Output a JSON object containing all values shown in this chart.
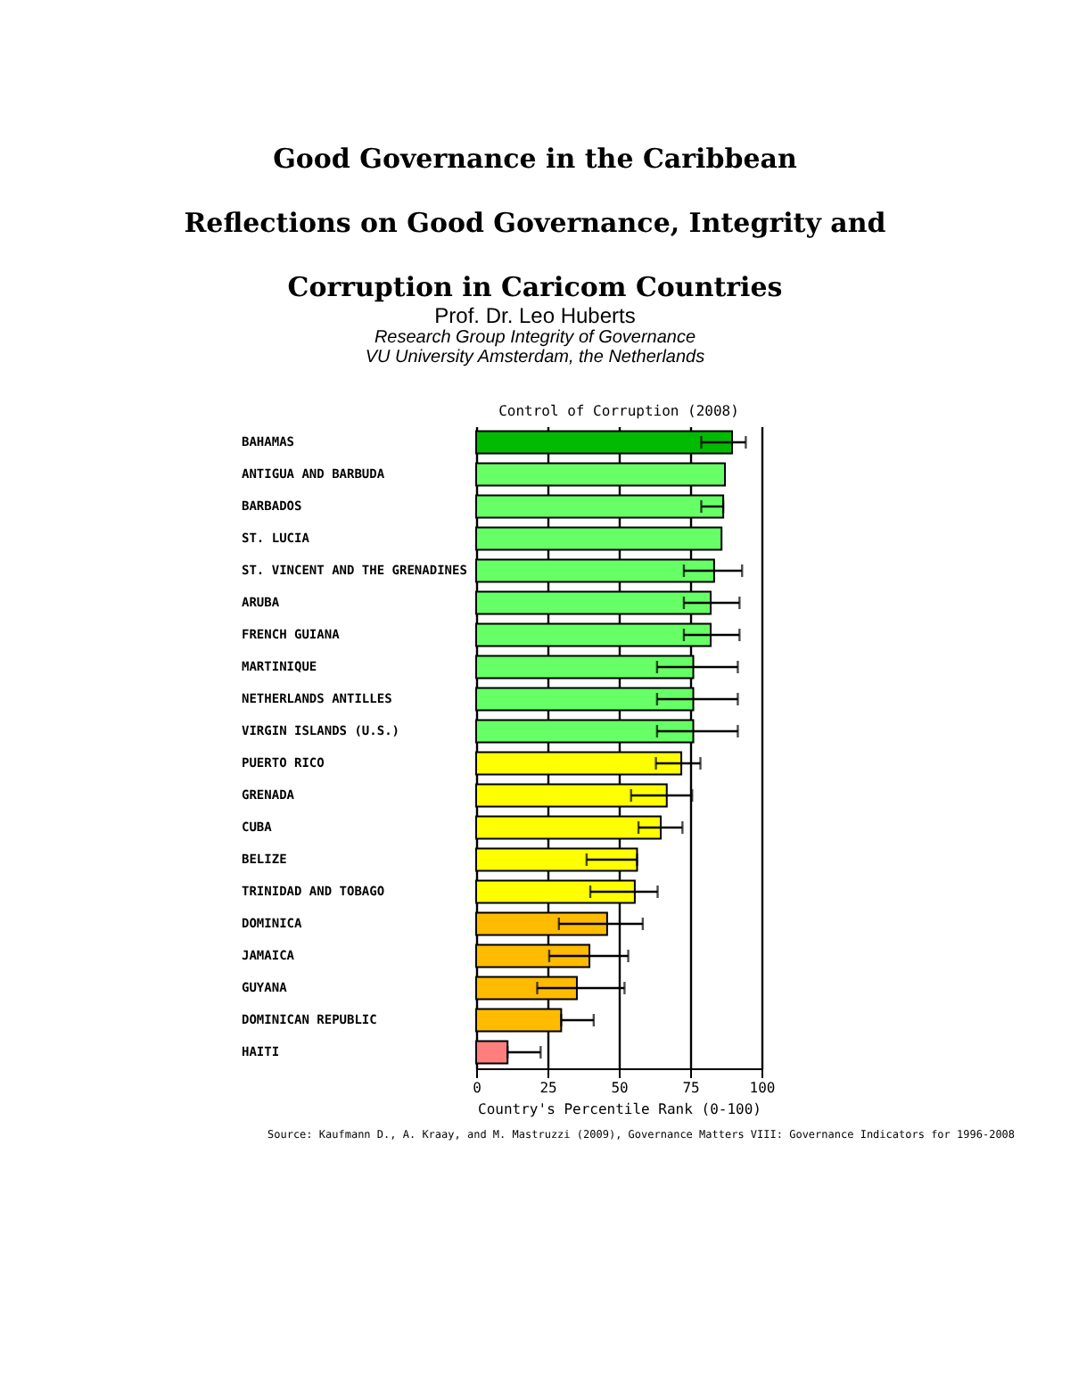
{
  "chart_data": {
    "type": "bar",
    "orientation": "horizontal",
    "title": "Control of Corruption (2008)",
    "xlabel": "Country's Percentile Rank (0-100)",
    "annotations": [
      "Good Governance in the Caribbean",
      "Reflections on Good Governance, Integrity and",
      "Corruption in Caricom Countries",
      "Prof. Dr. Leo Huberts",
      "Research Group Integrity of Governance",
      "VU University  Amsterdam, the Netherlands",
      "Source: Kaufmann D., A. Kraay, and M. Mastruzzi (2009), Governance Matters VIII: Governance Indicators for 1996-2008"
    ],
    "categories": [
      "BAHAMAS",
      "ANTIGUA AND BARBUDA",
      "BARBADOS",
      "ST. LUCIA",
      "ST. VINCENT AND THE GRENADINES",
      "ARUBA",
      "FRENCH GUIANA",
      "MARTINIQUE",
      "NETHERLANDS ANTILLES",
      "VIRGIN ISLANDS (U.S.)",
      "PUERTO RICO",
      "GRENADA",
      "CUBA",
      "BELIZE",
      "TRINIDAD AND TOBAGO",
      "DOMINICA",
      "JAMAICA",
      "GUYANA",
      "DOMINICAN REPUBLIC",
      "HAITI"
    ],
    "values": [
      89.7,
      87.2,
      86.6,
      86,
      83.4,
      82.2,
      82.2,
      76.1,
      76.1,
      76.1,
      71.9,
      66.8,
      64.7,
      56.4,
      55.6,
      45.9,
      39.7,
      35.3,
      29.8,
      11
    ],
    "errors": [
      [
        78.9,
        94.5
      ],
      null,
      [
        78.9,
        86.6
      ],
      null,
      [
        72.8,
        93.2
      ],
      [
        72.8,
        92.3
      ],
      [
        72.8,
        92.3
      ],
      [
        63.4,
        91.7
      ],
      [
        63.4,
        91.7
      ],
      [
        63.4,
        91.7
      ],
      [
        63,
        78.6
      ],
      [
        54.3,
        75.7
      ],
      [
        56.9,
        72.3
      ],
      [
        38.7,
        56.4
      ],
      [
        40,
        63.6
      ],
      [
        29,
        58.4
      ],
      [
        25.6,
        53.3
      ],
      [
        21.4,
        52
      ],
      [
        29.8,
        41.2
      ],
      [
        11,
        22.6
      ]
    ],
    "colors": [
      "#00bb00",
      "#66ff66",
      "#66ff66",
      "#66ff66",
      "#66ff66",
      "#66ff66",
      "#66ff66",
      "#66ff66",
      "#66ff66",
      "#66ff66",
      "#ffff00",
      "#ffff00",
      "#ffff00",
      "#ffff00",
      "#ffff00",
      "#ffbb00",
      "#ffbb00",
      "#ffbb00",
      "#ffbb00",
      "#ff7f7f"
    ],
    "xlim": [
      0,
      100
    ],
    "xticks": [
      0,
      25,
      50,
      75,
      100
    ],
    "grid": "x"
  }
}
